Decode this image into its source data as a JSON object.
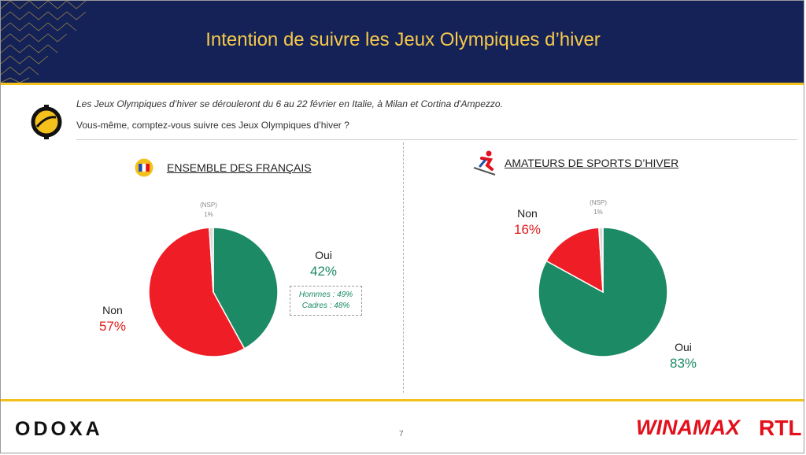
{
  "header": {
    "title": "Intention de suivre les Jeux Olympiques d’hiver"
  },
  "question": {
    "intro": "Les Jeux Olympiques d’hiver se dérouleront du 6 au 22 février en Italie, à Milan et Cortina d'Ampezzo.",
    "text": "Vous-même, comptez-vous suivre ces Jeux Olympiques d’hiver ?"
  },
  "colors": {
    "navy": "#142258",
    "gold": "#f4c01c",
    "oui_green": "#1b8a65",
    "non_red": "#ef1e26",
    "nsp_gray": "#d9d9d9"
  },
  "icons": {
    "logo": "odoxa-o-icon",
    "flag": "france-flag-icon",
    "skier": "skier-icon"
  },
  "chart_data": [
    {
      "type": "pie",
      "title": "ENSEMBLE DES FRANÇAIS",
      "slices": [
        {
          "label": "Oui",
          "value": 42,
          "display": "42%",
          "color": "#1b8a65"
        },
        {
          "label": "Non",
          "value": 57,
          "display": "57%",
          "color": "#ef1e26"
        },
        {
          "label": "(NSP)",
          "value": 1,
          "display": "1%",
          "color": "#d9d9d9"
        }
      ],
      "annotation": [
        "Hommes : 49%",
        "Cadres : 48%"
      ]
    },
    {
      "type": "pie",
      "title": "AMATEURS DE SPORTS D’HIVER",
      "slices": [
        {
          "label": "Oui",
          "value": 83,
          "display": "83%",
          "color": "#1b8a65"
        },
        {
          "label": "Non",
          "value": 16,
          "display": "16%",
          "color": "#ef1e26"
        },
        {
          "label": "(NSP)",
          "value": 1,
          "display": "1%",
          "color": "#d9d9d9"
        }
      ]
    }
  ],
  "footer": {
    "brand_left": "ODOXA",
    "page_number": "7",
    "brand_right_1": "WINAMAX",
    "brand_right_2": "RTL"
  }
}
